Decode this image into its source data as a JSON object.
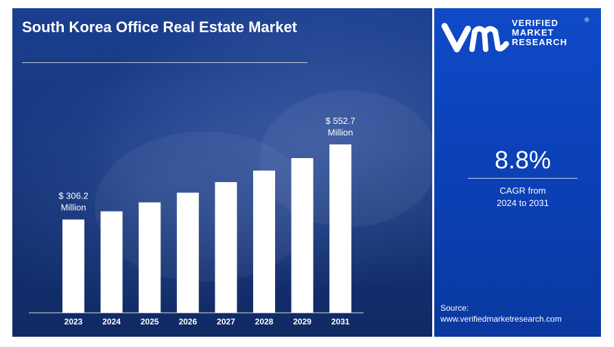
{
  "title": "South Korea Office Real Estate Market",
  "logo": {
    "line1": "VERIFIED",
    "line2": "MARKET",
    "line3": "RESEARCH",
    "registered": "®"
  },
  "cagr": {
    "value": "8.8%",
    "label_line1": "CAGR from",
    "label_line2": "2024 to 2031"
  },
  "source": {
    "label": "Source:",
    "url": "www.verifiedmarketresearch.com"
  },
  "colors": {
    "bar": "#ffffff",
    "left_panel": "#153477",
    "right_panel": "#0b3fb3",
    "text": "#ffffff"
  },
  "chart_data": {
    "type": "bar",
    "categories": [
      "2023",
      "2024",
      "2025",
      "2026",
      "2027",
      "2028",
      "2029",
      "2031"
    ],
    "values": [
      306.2,
      333.1,
      362.4,
      394.3,
      429.0,
      466.7,
      507.8,
      552.7
    ],
    "data_labels": [
      {
        "index": 0,
        "line1": "$ 306.2",
        "line2": "Million"
      },
      {
        "index": 7,
        "line1": "$ 552.7",
        "line2": "Million"
      }
    ],
    "title": "South Korea Office Real Estate Market",
    "xlabel": "",
    "ylabel": "",
    "grid": false,
    "legend": "none"
  }
}
